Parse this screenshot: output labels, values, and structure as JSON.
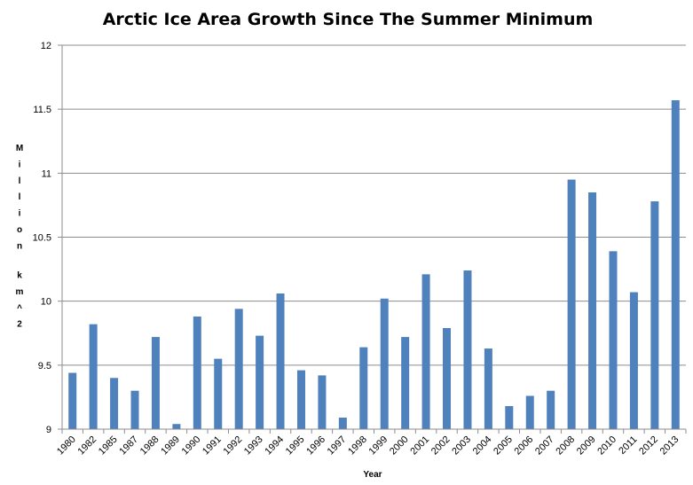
{
  "chart_data": {
    "type": "bar",
    "title": "Arctic Ice Area Growth Since The Summer Minimum",
    "xlabel": "Year",
    "ylabel": "Million km^2",
    "ylim": [
      9,
      12
    ],
    "y_ticks": [
      "9",
      "9.5",
      "10",
      "10.5",
      "11",
      "11.5",
      "12"
    ],
    "grid": true,
    "legend": "none",
    "bar_color": "#4f81bd",
    "categories": [
      "1980",
      "1982",
      "1985",
      "1987",
      "1988",
      "1989",
      "1990",
      "1991",
      "1992",
      "1993",
      "1994",
      "1995",
      "1996",
      "1997",
      "1998",
      "1999",
      "2000",
      "2001",
      "2002",
      "2003",
      "2004",
      "2005",
      "2006",
      "2007",
      "2008",
      "2009",
      "2010",
      "2011",
      "2012",
      "2013"
    ],
    "values": [
      9.44,
      9.82,
      9.4,
      9.3,
      9.72,
      9.04,
      9.88,
      9.55,
      9.94,
      9.73,
      10.06,
      9.46,
      9.42,
      9.09,
      9.64,
      10.02,
      9.72,
      10.21,
      9.79,
      10.24,
      9.63,
      9.18,
      9.26,
      9.3,
      10.95,
      10.85,
      10.39,
      10.07,
      10.78,
      11.57
    ]
  }
}
